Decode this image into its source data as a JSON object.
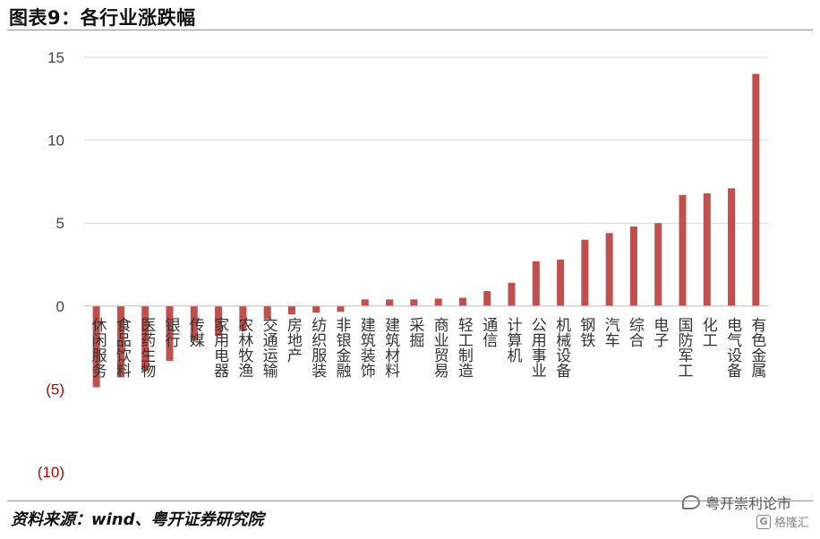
{
  "header": {
    "title": "图表9：各行业涨跌幅"
  },
  "footer": {
    "source": "资料来源：wind、粤开证券研究院",
    "watermark": "粤开崇利论市",
    "watermark_sub": "格隆汇"
  },
  "chart_data": {
    "type": "bar",
    "title": "",
    "xlabel": "",
    "ylabel": "",
    "ylim": [
      -10,
      15
    ],
    "yticks": [
      15,
      10,
      5,
      0,
      -5,
      -10
    ],
    "ytick_labels": [
      "15",
      "10",
      "5",
      "0",
      "(5)",
      "(10)"
    ],
    "grid": "horizontal",
    "bar_color": "#c0504d",
    "negative_label_color": "#c00000",
    "categories": [
      "休闲服务",
      "食品饮料",
      "医药生物",
      "银行",
      "传媒",
      "家用电器",
      "农林牧渔",
      "交通运输",
      "房地产",
      "纺织服装",
      "非银金融",
      "建筑装饰",
      "建筑材料",
      "采掘",
      "商业贸易",
      "轻工制造",
      "通信",
      "计算机",
      "公用事业",
      "机械设备",
      "钢铁",
      "汽车",
      "综合",
      "电子",
      "国防军工",
      "化工",
      "电气设备",
      "有色金属"
    ],
    "values": [
      -4.9,
      -4.3,
      -3.9,
      -3.3,
      -2.1,
      -1.8,
      -1.5,
      -0.8,
      -0.5,
      -0.4,
      -0.35,
      0.4,
      0.4,
      0.4,
      0.45,
      0.5,
      0.9,
      1.4,
      2.7,
      2.8,
      4.0,
      4.4,
      4.8,
      5.0,
      6.7,
      6.8,
      7.1,
      14.0
    ]
  }
}
